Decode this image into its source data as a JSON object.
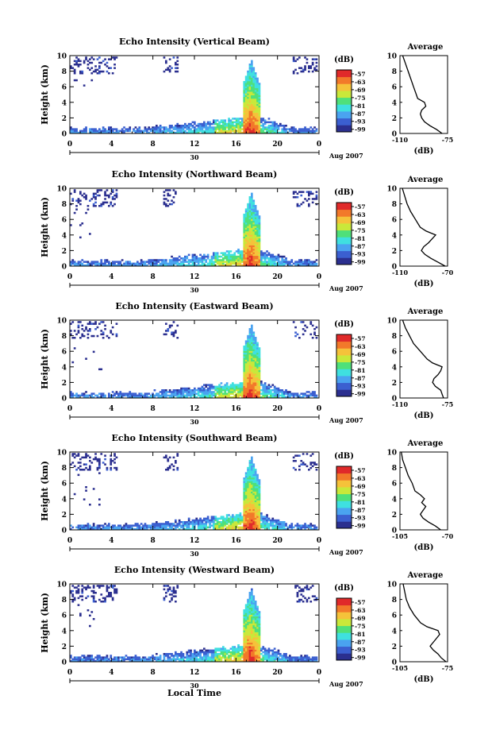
{
  "figure": {
    "xlabel_bottom": "Local Time",
    "date_label": "Aug 2007",
    "day_label": "30",
    "ylabel": "Height (km)",
    "x_ticks": [
      "0",
      "4",
      "8",
      "12",
      "16",
      "20",
      "0"
    ],
    "y_ticks": [
      "0",
      "2",
      "4",
      "6",
      "8",
      "10"
    ],
    "colorbar_title": "(dB)",
    "colorbar_ticks": [
      "-57",
      "-63",
      "-69",
      "-75",
      "-81",
      "-87",
      "-93",
      "-99"
    ],
    "colorbar_colors": [
      "#2b2f8f",
      "#3b5fd0",
      "#4aa3f0",
      "#3fe0e0",
      "#4fe07a",
      "#c9e83a",
      "#f5c23a",
      "#f2792a",
      "#e02a2a"
    ],
    "avg_title": "Average",
    "avg_xlabel": "(dB)"
  },
  "chart_data": [
    {
      "type": "heatmap",
      "title": "Echo Intensity (Vertical Beam)",
      "xlabel": "",
      "ylabel": "Height (km)",
      "xlim": [
        0,
        24
      ],
      "ylim": [
        0,
        10
      ],
      "colorbar_range_db": [
        -99,
        -57
      ],
      "average_profile": {
        "title": "Average",
        "xlabel": "(dB)",
        "xlim": [
          -110,
          -75
        ],
        "xtick_labels": [
          "-110",
          "-75"
        ],
        "height_km": [
          0,
          0.5,
          1,
          1.5,
          2,
          2.5,
          3,
          3.5,
          4,
          4.5,
          5,
          6,
          7,
          8,
          9,
          10
        ],
        "db": [
          -79,
          -83,
          -88,
          -92,
          -94,
          -95,
          -94,
          -91,
          -92,
          -97,
          -98,
          -100,
          -102,
          -104,
          -106,
          -108
        ]
      }
    },
    {
      "type": "heatmap",
      "title": "Echo Intensity (Northward Beam)",
      "xlabel": "",
      "ylabel": "Height (km)",
      "xlim": [
        0,
        24
      ],
      "ylim": [
        0,
        10
      ],
      "colorbar_range_db": [
        -99,
        -57
      ],
      "average_profile": {
        "title": "Average",
        "xlabel": "(dB)",
        "xlim": [
          -110,
          -70
        ],
        "xtick_labels": [
          "-110",
          "-70"
        ],
        "height_km": [
          0,
          0.5,
          1,
          1.5,
          2,
          2.5,
          3,
          3.5,
          4,
          4.5,
          5,
          6,
          7,
          8,
          9,
          10
        ],
        "db": [
          -72,
          -78,
          -84,
          -89,
          -92,
          -90,
          -86,
          -83,
          -80,
          -88,
          -93,
          -97,
          -101,
          -104,
          -106,
          -108
        ]
      }
    },
    {
      "type": "heatmap",
      "title": "Echo Intensity (Eastward Beam)",
      "xlabel": "",
      "ylabel": "Height (km)",
      "xlim": [
        0,
        24
      ],
      "ylim": [
        0,
        10
      ],
      "colorbar_range_db": [
        -99,
        -57
      ],
      "average_profile": {
        "title": "Average",
        "xlabel": "(dB)",
        "xlim": [
          -110,
          -75
        ],
        "xtick_labels": [
          "-110",
          "-75"
        ],
        "height_km": [
          0,
          0.5,
          1,
          1.5,
          2,
          2.5,
          3,
          3.5,
          4,
          4.5,
          5,
          6,
          7,
          8,
          9,
          10
        ],
        "db": [
          -78,
          -79,
          -80,
          -84,
          -86,
          -85,
          -82,
          -80,
          -79,
          -86,
          -90,
          -95,
          -100,
          -103,
          -106,
          -108
        ]
      }
    },
    {
      "type": "heatmap",
      "title": "Echo Intensity (Southward Beam)",
      "xlabel": "",
      "ylabel": "Height (km)",
      "xlim": [
        0,
        24
      ],
      "ylim": [
        0,
        10
      ],
      "colorbar_range_db": [
        -99,
        -57
      ],
      "average_profile": {
        "title": "Average",
        "xlabel": "(dB)",
        "xlim": [
          -105,
          -70
        ],
        "xtick_labels": [
          "-105",
          "-70"
        ],
        "height_km": [
          0,
          0.5,
          1,
          1.5,
          2,
          2.5,
          3,
          3.5,
          4,
          4.5,
          5,
          6,
          7,
          8,
          9,
          10
        ],
        "db": [
          -75,
          -79,
          -84,
          -88,
          -90,
          -88,
          -86,
          -89,
          -87,
          -90,
          -94,
          -96,
          -99,
          -101,
          -103,
          -104
        ]
      }
    },
    {
      "type": "heatmap",
      "title": "Echo Intensity (Westward Beam)",
      "xlabel": "Local Time",
      "ylabel": "Height (km)",
      "xlim": [
        0,
        24
      ],
      "ylim": [
        0,
        10
      ],
      "colorbar_range_db": [
        -99,
        -57
      ],
      "average_profile": {
        "title": "Average",
        "xlabel": "(dB)",
        "xlim": [
          -105,
          -75
        ],
        "xtick_labels": [
          "-105",
          "-75"
        ],
        "height_km": [
          0,
          0.5,
          1,
          1.5,
          2,
          2.5,
          3,
          3.5,
          4,
          4.5,
          5,
          6,
          7,
          8,
          9,
          10
        ],
        "db": [
          -76,
          -79,
          -81,
          -84,
          -86,
          -84,
          -82,
          -80,
          -81,
          -88,
          -92,
          -96,
          -99,
          -101,
          -102,
          -103
        ]
      }
    }
  ]
}
